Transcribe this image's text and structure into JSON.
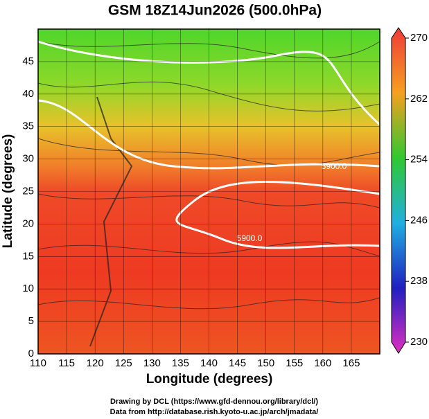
{
  "chart_data": {
    "type": "map",
    "title": "GSM 18Z14Jun2026 (500.0hPa)",
    "x_label": "Longitude (degrees)",
    "y_label": "Latitude  (degrees)",
    "xlim": [
      110,
      170
    ],
    "xticks": [
      110,
      115,
      120,
      125,
      130,
      135,
      140,
      145,
      150,
      155,
      160,
      165
    ],
    "ylim": [
      0,
      50
    ],
    "yticks": [
      0,
      5,
      10,
      15,
      20,
      25,
      30,
      35,
      40,
      45
    ],
    "grid": true,
    "colorbar": {
      "lim": [
        230,
        270
      ],
      "ticks": [
        230,
        238,
        246,
        254,
        262,
        270
      ]
    },
    "contour_labels": [
      "5900.0",
      "5900.0"
    ]
  },
  "footer": [
    "Drawing by DCL (https://www.gfd-dennou.org/library/dcl/)",
    "Data from http://database.rish.kyoto-u.ac.jp/arch/jmadata/"
  ]
}
